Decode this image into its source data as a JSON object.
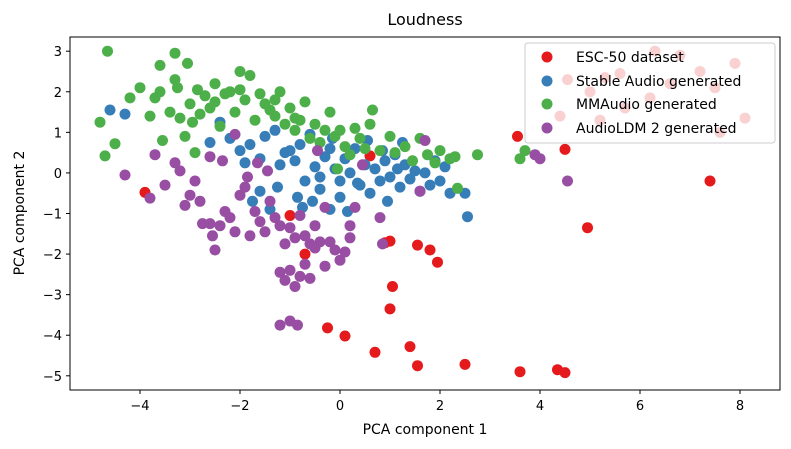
{
  "chart_data": {
    "type": "scatter",
    "title": "Loudness",
    "xlabel": "PCA component 1",
    "ylabel": "PCA component 2",
    "xlim": [
      -5.4,
      8.8
    ],
    "ylim": [
      -5.35,
      3.35
    ],
    "xticks": [
      -4,
      -2,
      0,
      2,
      4,
      6,
      8
    ],
    "yticks": [
      -5,
      -4,
      -3,
      -2,
      -1,
      0,
      1,
      2,
      3
    ],
    "grid": false,
    "legend_position": "top-right",
    "series": [
      {
        "name": "ESC-50 dataset",
        "color": "#e41a1c",
        "points": [
          [
            -3.9,
            -0.48
          ],
          [
            -1.0,
            -1.05
          ],
          [
            -0.7,
            -2.0
          ],
          [
            0.6,
            0.42
          ],
          [
            0.9,
            -1.72
          ],
          [
            1.0,
            -1.68
          ],
          [
            1.55,
            -1.78
          ],
          [
            1.8,
            -1.9
          ],
          [
            1.95,
            -2.2
          ],
          [
            1.05,
            -2.8
          ],
          [
            1.0,
            -3.35
          ],
          [
            1.4,
            -4.28
          ],
          [
            1.55,
            -4.75
          ],
          [
            0.7,
            -4.42
          ],
          [
            -0.25,
            -3.82
          ],
          [
            0.1,
            -4.02
          ],
          [
            2.5,
            -4.72
          ],
          [
            3.6,
            -4.9
          ],
          [
            4.35,
            -4.85
          ],
          [
            4.5,
            -4.92
          ],
          [
            3.55,
            0.9
          ],
          [
            4.5,
            0.58
          ],
          [
            4.95,
            -1.35
          ],
          [
            7.4,
            -0.2
          ],
          [
            4.4,
            1.4
          ],
          [
            5.2,
            1.3
          ],
          [
            6.2,
            1.85
          ],
          [
            6.3,
            3.0
          ],
          [
            6.8,
            2.9
          ],
          [
            6.6,
            2.2
          ],
          [
            7.5,
            2.1
          ],
          [
            7.6,
            1.0
          ],
          [
            8.1,
            1.35
          ],
          [
            4.55,
            2.3
          ],
          [
            5.3,
            2.35
          ],
          [
            5.6,
            2.45
          ],
          [
            7.2,
            2.5
          ],
          [
            5.7,
            1.6
          ],
          [
            7.9,
            2.7
          ],
          [
            5.0,
            2.0
          ]
        ]
      },
      {
        "name": "Stable Audio generated",
        "color": "#377eb8",
        "points": [
          [
            -4.6,
            1.55
          ],
          [
            -4.3,
            1.45
          ],
          [
            -2.2,
            0.85
          ],
          [
            -2.0,
            0.55
          ],
          [
            -1.8,
            0.7
          ],
          [
            -1.6,
            0.35
          ],
          [
            -1.5,
            0.9
          ],
          [
            -1.3,
            1.05
          ],
          [
            -1.2,
            0.2
          ],
          [
            -1.1,
            0.5
          ],
          [
            -0.9,
            0.3
          ],
          [
            -0.8,
            0.7
          ],
          [
            -0.6,
            0.95
          ],
          [
            -0.5,
            0.15
          ],
          [
            -0.4,
            -0.1
          ],
          [
            -0.3,
            0.4
          ],
          [
            -0.2,
            0.6
          ],
          [
            -0.1,
            0.1
          ],
          [
            0.0,
            -0.2
          ],
          [
            0.1,
            0.35
          ],
          [
            0.2,
            0.0
          ],
          [
            0.3,
            0.6
          ],
          [
            0.4,
            -0.3
          ],
          [
            0.5,
            0.2
          ],
          [
            0.6,
            -0.5
          ],
          [
            0.7,
            0.1
          ],
          [
            0.8,
            -0.2
          ],
          [
            0.9,
            0.3
          ],
          [
            1.0,
            -0.1
          ],
          [
            1.1,
            0.45
          ],
          [
            1.2,
            -0.35
          ],
          [
            1.3,
            0.2
          ],
          [
            1.4,
            -0.15
          ],
          [
            1.5,
            0.05
          ],
          [
            1.6,
            -0.45
          ],
          [
            1.7,
            0.0
          ],
          [
            1.8,
            -0.3
          ],
          [
            1.9,
            0.3
          ],
          [
            2.0,
            -0.2
          ],
          [
            2.1,
            0.15
          ],
          [
            2.2,
            -0.5
          ],
          [
            2.5,
            -0.5
          ],
          [
            2.55,
            -1.08
          ],
          [
            -0.85,
            -0.6
          ],
          [
            -0.7,
            -0.2
          ],
          [
            -0.55,
            -0.7
          ],
          [
            -0.4,
            -0.4
          ],
          [
            -0.2,
            -0.9
          ],
          [
            0.0,
            -0.6
          ],
          [
            0.15,
            -0.95
          ],
          [
            -1.4,
            -0.9
          ],
          [
            -1.25,
            -0.35
          ],
          [
            -1.6,
            -0.45
          ],
          [
            -1.75,
            -0.7
          ],
          [
            -1.0,
            0.55
          ],
          [
            -0.75,
            -0.85
          ],
          [
            0.35,
            -0.25
          ],
          [
            0.55,
            0.8
          ],
          [
            0.85,
            0.55
          ],
          [
            1.25,
            0.75
          ],
          [
            -2.4,
            1.25
          ],
          [
            -2.6,
            0.75
          ],
          [
            -1.9,
            0.25
          ],
          [
            -0.15,
            0.85
          ],
          [
            0.95,
            -0.7
          ],
          [
            1.15,
            0.1
          ]
        ]
      },
      {
        "name": "MMAudio generated",
        "color": "#4daf4a",
        "points": [
          [
            -4.65,
            3.0
          ],
          [
            -4.8,
            1.25
          ],
          [
            -4.7,
            0.42
          ],
          [
            -4.5,
            0.72
          ],
          [
            -4.2,
            1.85
          ],
          [
            -4.0,
            2.1
          ],
          [
            -3.8,
            1.4
          ],
          [
            -3.7,
            1.85
          ],
          [
            -3.6,
            2.0
          ],
          [
            -3.6,
            2.65
          ],
          [
            -3.55,
            0.8
          ],
          [
            -3.4,
            1.5
          ],
          [
            -3.3,
            2.3
          ],
          [
            -3.3,
            2.95
          ],
          [
            -3.25,
            2.1
          ],
          [
            -3.2,
            1.35
          ],
          [
            -3.1,
            0.9
          ],
          [
            -3.05,
            2.7
          ],
          [
            -3.0,
            1.7
          ],
          [
            -2.95,
            1.25
          ],
          [
            -2.9,
            0.5
          ],
          [
            -2.85,
            2.05
          ],
          [
            -2.8,
            1.45
          ],
          [
            -2.7,
            1.9
          ],
          [
            -2.6,
            1.6
          ],
          [
            -2.5,
            1.75
          ],
          [
            -2.4,
            1.15
          ],
          [
            -2.3,
            1.95
          ],
          [
            -2.2,
            2.0
          ],
          [
            -2.1,
            1.5
          ],
          [
            -2.0,
            2.05
          ],
          [
            -1.9,
            1.8
          ],
          [
            -1.8,
            2.4
          ],
          [
            -1.7,
            1.3
          ],
          [
            -1.6,
            1.95
          ],
          [
            -1.5,
            1.7
          ],
          [
            -1.4,
            1.55
          ],
          [
            -1.3,
            1.4
          ],
          [
            -1.2,
            2.0
          ],
          [
            -1.1,
            1.2
          ],
          [
            -1.0,
            1.6
          ],
          [
            -0.9,
            1.05
          ],
          [
            -0.8,
            1.3
          ],
          [
            -0.7,
            1.75
          ],
          [
            -0.6,
            0.85
          ],
          [
            -0.5,
            1.2
          ],
          [
            -0.4,
            0.75
          ],
          [
            -0.3,
            1.05
          ],
          [
            -0.2,
            1.5
          ],
          [
            -0.1,
            0.9
          ],
          [
            0.0,
            1.05
          ],
          [
            0.1,
            0.65
          ],
          [
            0.2,
            0.45
          ],
          [
            0.3,
            1.1
          ],
          [
            0.4,
            0.85
          ],
          [
            0.5,
            0.6
          ],
          [
            0.6,
            1.2
          ],
          [
            0.65,
            1.55
          ],
          [
            0.8,
            0.55
          ],
          [
            1.0,
            0.9
          ],
          [
            1.1,
            0.5
          ],
          [
            1.3,
            0.65
          ],
          [
            1.45,
            0.3
          ],
          [
            1.6,
            0.85
          ],
          [
            1.75,
            0.45
          ],
          [
            1.9,
            0.25
          ],
          [
            2.0,
            0.55
          ],
          [
            2.2,
            0.35
          ],
          [
            2.3,
            0.4
          ],
          [
            2.35,
            -0.38
          ],
          [
            2.75,
            0.45
          ],
          [
            3.6,
            0.35
          ],
          [
            3.7,
            0.55
          ],
          [
            -2.5,
            2.2
          ],
          [
            -2.0,
            2.5
          ],
          [
            -1.3,
            1.8
          ],
          [
            -0.9,
            1.35
          ],
          [
            -0.05,
            0.1
          ]
        ]
      },
      {
        "name": "AudioLDM 2 generated",
        "color": "#984ea3",
        "points": [
          [
            -4.3,
            -0.05
          ],
          [
            -3.8,
            -0.62
          ],
          [
            -3.7,
            0.45
          ],
          [
            -3.3,
            0.25
          ],
          [
            -3.2,
            0.05
          ],
          [
            -3.1,
            -0.8
          ],
          [
            -3.0,
            -0.55
          ],
          [
            -2.9,
            -0.2
          ],
          [
            -2.8,
            -0.7
          ],
          [
            -2.75,
            -1.25
          ],
          [
            -2.6,
            -1.25
          ],
          [
            -2.55,
            -1.55
          ],
          [
            -2.5,
            -1.9
          ],
          [
            -2.4,
            -1.3
          ],
          [
            -2.3,
            -0.95
          ],
          [
            -2.2,
            -1.1
          ],
          [
            -2.1,
            -1.45
          ],
          [
            -2.0,
            -0.55
          ],
          [
            -1.9,
            -0.35
          ],
          [
            -1.8,
            -1.55
          ],
          [
            -1.7,
            -0.95
          ],
          [
            -1.6,
            -1.2
          ],
          [
            -1.5,
            -1.45
          ],
          [
            -1.4,
            -0.7
          ],
          [
            -1.3,
            -1.1
          ],
          [
            -1.2,
            -1.3
          ],
          [
            -1.1,
            -1.75
          ],
          [
            -1.0,
            -1.35
          ],
          [
            -0.9,
            -1.6
          ],
          [
            -0.8,
            -1.05
          ],
          [
            -0.7,
            -1.55
          ],
          [
            -0.6,
            -1.75
          ],
          [
            -0.5,
            -1.85
          ],
          [
            -0.4,
            -1.7
          ],
          [
            -0.3,
            -2.3
          ],
          [
            -0.2,
            -1.7
          ],
          [
            -0.1,
            -1.9
          ],
          [
            0.0,
            -2.15
          ],
          [
            0.1,
            -1.95
          ],
          [
            0.2,
            -1.6
          ],
          [
            0.3,
            -0.85
          ],
          [
            -1.2,
            -2.45
          ],
          [
            -1.1,
            -2.65
          ],
          [
            -1.0,
            -2.4
          ],
          [
            -0.9,
            -2.8
          ],
          [
            -0.8,
            -2.55
          ],
          [
            -0.7,
            -2.25
          ],
          [
            -0.6,
            -2.6
          ],
          [
            -1.0,
            -3.65
          ],
          [
            -1.2,
            -3.75
          ],
          [
            -0.85,
            -3.75
          ],
          [
            -0.5,
            -1.3
          ],
          [
            -0.3,
            -0.85
          ],
          [
            0.2,
            -1.3
          ],
          [
            0.8,
            -1.1
          ],
          [
            0.85,
            -1.75
          ],
          [
            1.6,
            -0.45
          ],
          [
            1.7,
            0.8
          ],
          [
            3.9,
            0.45
          ],
          [
            4.0,
            0.35
          ],
          [
            4.55,
            -0.2
          ],
          [
            -2.1,
            0.95
          ],
          [
            -2.6,
            0.4
          ],
          [
            -3.5,
            -0.3
          ],
          [
            -2.35,
            0.3
          ],
          [
            -1.45,
            0.05
          ],
          [
            -1.65,
            0.25
          ],
          [
            -0.45,
            0.55
          ],
          [
            0.45,
            0.2
          ],
          [
            -1.85,
            -0.1
          ]
        ]
      }
    ]
  }
}
